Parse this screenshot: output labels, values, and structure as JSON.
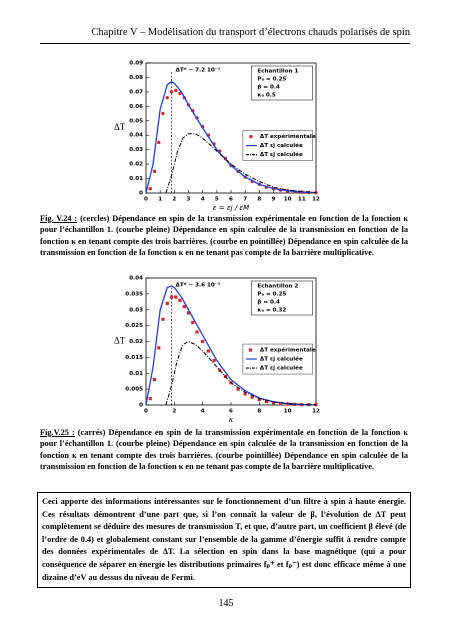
{
  "header": "Chapitre V – Modélisation du transport d’électrons chauds polarisés de spin",
  "chart_data": [
    {
      "type": "line",
      "y_label": "ΔT",
      "x_label": "ε = εj / εM",
      "annotation": "ΔT* ~ 7.2 10⁻³",
      "reference_x": 1.8,
      "params": [
        "Echantillon 1",
        "Pₐ = 0.25",
        "β = 0.4",
        "κₐ 0.5"
      ],
      "xlim": [
        0,
        12
      ],
      "xticks": [
        0,
        1,
        2,
        3,
        4,
        5,
        6,
        7,
        8,
        9,
        10,
        11,
        12
      ],
      "ylim": [
        0,
        0.09
      ],
      "yticks": [
        0,
        0.01,
        0.02,
        0.03,
        0.04,
        0.05,
        0.06,
        0.07,
        0.08,
        0.09
      ],
      "series": [
        {
          "name": "ΔT expérimentale",
          "color": "#e0242a",
          "mode": "markers",
          "marker": "circle",
          "x": [
            0.3,
            0.6,
            0.9,
            1.2,
            1.5,
            1.8,
            2.1,
            2.4,
            2.7,
            3.0,
            3.3,
            3.6,
            4,
            4.4,
            4.8,
            5.2,
            5.6,
            6,
            6.5,
            7,
            7.5,
            8,
            8.5,
            9,
            9.5,
            10,
            10.5,
            11,
            11.5,
            12
          ],
          "values": [
            0.003,
            0.015,
            0.035,
            0.055,
            0.066,
            0.07,
            0.071,
            0.069,
            0.066,
            0.061,
            0.057,
            0.052,
            0.046,
            0.04,
            0.034,
            0.029,
            0.024,
            0.019,
            0.015,
            0.011,
            0.008,
            0.006,
            0.004,
            0.003,
            0.002,
            0.0014,
            0.0009,
            0.0006,
            0.0003,
            0.0002
          ]
        },
        {
          "name": "ΔT εj calculée",
          "color": "#2040e0",
          "mode": "line",
          "dash": "solid",
          "x": [
            0,
            0.5,
            1,
            1.5,
            1.8,
            2,
            2.5,
            3,
            3.5,
            4,
            5,
            6,
            7,
            8,
            9,
            10,
            11,
            12
          ],
          "values": [
            0,
            0.02,
            0.058,
            0.075,
            0.077,
            0.076,
            0.07,
            0.061,
            0.053,
            0.045,
            0.03,
            0.019,
            0.011,
            0.006,
            0.003,
            0.0015,
            0.0006,
            0.0002
          ]
        },
        {
          "name": "ΔT εj calculée",
          "color": "#000000",
          "mode": "line",
          "dash": "dashdot",
          "x": [
            1.4,
            1.8,
            2.2,
            2.6,
            3,
            3.5,
            4,
            5,
            6,
            7,
            8,
            9,
            10,
            11,
            12
          ],
          "values": [
            0,
            0.012,
            0.028,
            0.038,
            0.041,
            0.041,
            0.038,
            0.029,
            0.02,
            0.013,
            0.008,
            0.004,
            0.002,
            0.001,
            0.0004
          ]
        }
      ]
    },
    {
      "type": "line",
      "y_label": "ΔT",
      "x_label": "κ",
      "annotation": "ΔT* ~ 3.6 10⁻³",
      "reference_x": 1.8,
      "params": [
        "Echantillon 2",
        "Pₐ = 0.25",
        "β = 0.4",
        "κₐ = 0.32"
      ],
      "xlim": [
        0,
        12
      ],
      "xticks": [
        0,
        2,
        4,
        6,
        8,
        10,
        12
      ],
      "ylim": [
        0,
        0.04
      ],
      "yticks": [
        0,
        0.005,
        0.01,
        0.015,
        0.02,
        0.025,
        0.03,
        0.035,
        0.04
      ],
      "series": [
        {
          "name": "ΔT expérimentale",
          "color": "#e0242a",
          "mode": "markers",
          "marker": "square",
          "x": [
            0.3,
            0.6,
            0.9,
            1.2,
            1.5,
            1.8,
            2.1,
            2.4,
            2.7,
            3.0,
            3.3,
            3.6,
            4,
            4.4,
            4.8,
            5.2,
            5.6,
            6,
            6.5,
            7,
            7.5,
            8,
            8.5,
            9,
            9.5,
            10,
            10.5,
            11,
            11.5,
            12
          ],
          "values": [
            0.002,
            0.008,
            0.018,
            0.027,
            0.032,
            0.034,
            0.034,
            0.033,
            0.031,
            0.029,
            0.026,
            0.023,
            0.02,
            0.017,
            0.014,
            0.011,
            0.009,
            0.007,
            0.005,
            0.0035,
            0.0025,
            0.0017,
            0.0011,
            0.0007,
            0.0005,
            0.0003,
            0.0002,
            0.0001,
            0.0001,
            0.0001
          ]
        },
        {
          "name": "ΔT εj calculée",
          "color": "#2040e0",
          "mode": "line",
          "dash": "solid",
          "x": [
            0,
            0.5,
            1,
            1.5,
            1.8,
            2,
            2.5,
            3,
            3.5,
            4,
            5,
            6,
            7,
            8,
            9,
            10,
            11,
            12
          ],
          "values": [
            0,
            0.012,
            0.03,
            0.037,
            0.0375,
            0.037,
            0.034,
            0.03,
            0.026,
            0.022,
            0.014,
            0.008,
            0.0045,
            0.0022,
            0.001,
            0.0004,
            0.0001,
            0
          ]
        },
        {
          "name": "ΔT εj calculée",
          "color": "#000000",
          "mode": "line",
          "dash": "dashdot",
          "x": [
            1.4,
            1.8,
            2.2,
            2.6,
            3,
            3.5,
            4,
            5,
            6,
            7,
            8,
            9,
            10,
            11,
            12
          ],
          "values": [
            0,
            0.006,
            0.014,
            0.019,
            0.02,
            0.019,
            0.017,
            0.012,
            0.007,
            0.004,
            0.002,
            0.001,
            0.0005,
            0.0002,
            0.0001
          ]
        }
      ]
    }
  ],
  "captions": [
    {
      "label": "Fig. V.24 :",
      "text": "(cercles) Dépendance en spin de la transmission expérimentale en fonction de la fonction κ pour l’échantillon 1. (courbe pleine) Dépendance en spin calculée de la transmission en fonction de la fonction κ en tenant compte des trois barrières. (courbe en pointillée) Dépendance en spin calculée de la transmission en fonction de la fonction κ en ne tenant pas compte de la barrière multiplicative."
    },
    {
      "label": "Fig.V.25 :",
      "text": "(carrés) Dépendance en spin de la transmission expérimentale en fonction de la fonction κ pour l’échantillon 1. (courbe pleine) Dépendance en spin calculée de la transmission en fonction de la fonction κ en tenant compte des trois barrières. (courbe pointillée) Dépendance en spin calculée de la transmission en fonction de la fonction κ en ne tenant pas compte de la barrière multiplicative."
    }
  ],
  "paragraph": "Ceci apporte des informations intéressantes sur le fonctionnement d’un filtre à spin à haute énergie. Ces résultats démontrent d’une part que, si l’on connaît la valeur de β, l’évolution de ΔT peut complètement se déduire des mesures de transmission T, et que, d’autre part, un coefficient β élevé (de l’ordre de 0.4) et globalement constant sur l’ensemble de la gamme d’énergie suffit à rendre compte des données expérimentales de ΔT. La sélection en spin dans la base magnétique (qui a pour conséquence de séparer en énergie les distributions primaires fₚ⁺ et fₚ⁻) est donc efficace même à une dizaine d’eV au dessus du niveau de Fermi.",
  "page_number": "145"
}
